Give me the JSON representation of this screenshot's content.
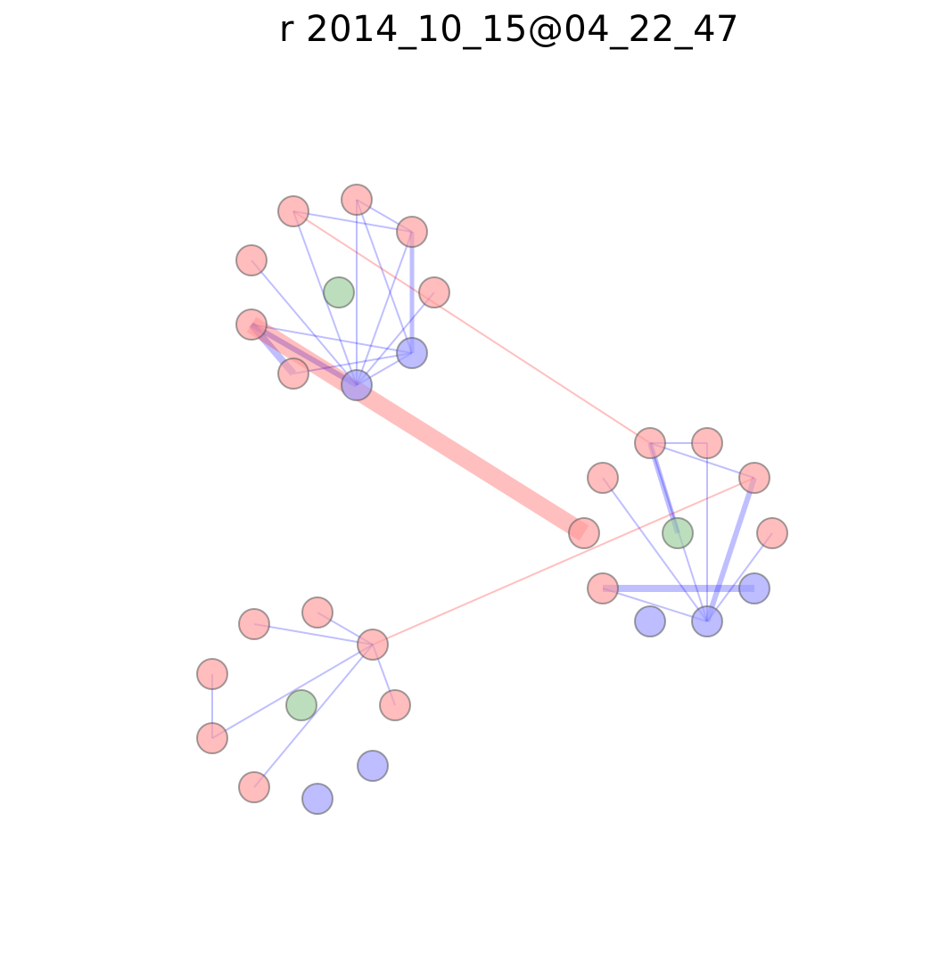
{
  "title": "r 2014_10_15@04_22_47",
  "colors": {
    "red_node": "#ff9999",
    "blue_node": "#9999ff",
    "green_node": "#99cc99",
    "red_edge": "#ff0000",
    "blue_edge": "#0000ff",
    "node_stroke": "#555555"
  },
  "nodes": [
    {
      "id": "a1",
      "color": "red"
    },
    {
      "id": "a2",
      "color": "red"
    },
    {
      "id": "a3",
      "color": "red"
    },
    {
      "id": "a4",
      "color": "red"
    },
    {
      "id": "a5",
      "color": "red"
    },
    {
      "id": "a6",
      "color": "red"
    },
    {
      "id": "a7",
      "color": "red"
    },
    {
      "id": "a8",
      "color": "green"
    },
    {
      "id": "a9",
      "color": "blue"
    },
    {
      "id": "a10",
      "color": "blue"
    },
    {
      "id": "b1",
      "color": "red"
    },
    {
      "id": "b2",
      "color": "red"
    },
    {
      "id": "b3",
      "color": "red"
    },
    {
      "id": "b4",
      "color": "red"
    },
    {
      "id": "b5",
      "color": "red"
    },
    {
      "id": "b6",
      "color": "red"
    },
    {
      "id": "b7",
      "color": "red"
    },
    {
      "id": "b8",
      "color": "green"
    },
    {
      "id": "b9",
      "color": "blue"
    },
    {
      "id": "b10",
      "color": "blue"
    },
    {
      "id": "b11",
      "color": "blue"
    },
    {
      "id": "c1",
      "color": "red"
    },
    {
      "id": "c2",
      "color": "red"
    },
    {
      "id": "c3",
      "color": "red"
    },
    {
      "id": "c4",
      "color": "red"
    },
    {
      "id": "c5",
      "color": "red"
    },
    {
      "id": "c6",
      "color": "red"
    },
    {
      "id": "c7",
      "color": "red"
    },
    {
      "id": "c8",
      "color": "green"
    },
    {
      "id": "c9",
      "color": "blue"
    },
    {
      "id": "c10",
      "color": "blue"
    }
  ],
  "edges": [
    {
      "from": "a1",
      "to": "a3",
      "color": "blue",
      "weight": 1
    },
    {
      "from": "a1",
      "to": "a10",
      "color": "blue",
      "weight": 1
    },
    {
      "from": "a2",
      "to": "a3",
      "color": "blue",
      "weight": 1
    },
    {
      "from": "a2",
      "to": "a10",
      "color": "blue",
      "weight": 1
    },
    {
      "from": "a2",
      "to": "a9",
      "color": "blue",
      "weight": 1
    },
    {
      "from": "a3",
      "to": "a9",
      "color": "blue",
      "weight": 2.5
    },
    {
      "from": "a3",
      "to": "a10",
      "color": "blue",
      "weight": 1
    },
    {
      "from": "a4",
      "to": "a10",
      "color": "blue",
      "weight": 1
    },
    {
      "from": "a5",
      "to": "a10",
      "color": "blue",
      "weight": 1
    },
    {
      "from": "a6",
      "to": "a9",
      "color": "blue",
      "weight": 1
    },
    {
      "from": "a6",
      "to": "a10",
      "color": "blue",
      "weight": 3
    },
    {
      "from": "a6",
      "to": "a7",
      "color": "blue",
      "weight": 4
    },
    {
      "from": "a7",
      "to": "a9",
      "color": "blue",
      "weight": 1
    },
    {
      "from": "a9",
      "to": "a10",
      "color": "blue",
      "weight": 1
    },
    {
      "from": "a6",
      "to": "b7",
      "color": "red",
      "weight": 10
    },
    {
      "from": "a1",
      "to": "b1",
      "color": "red",
      "weight": 1
    },
    {
      "from": "b1",
      "to": "b3",
      "color": "blue",
      "weight": 1
    },
    {
      "from": "b1",
      "to": "b4",
      "color": "blue",
      "weight": 1
    },
    {
      "from": "b1",
      "to": "b8",
      "color": "blue",
      "weight": 3
    },
    {
      "from": "b1",
      "to": "b10",
      "color": "blue",
      "weight": 1
    },
    {
      "from": "b2",
      "to": "b10",
      "color": "blue",
      "weight": 1
    },
    {
      "from": "b3",
      "to": "b10",
      "color": "blue",
      "weight": 3
    },
    {
      "from": "b4",
      "to": "b10",
      "color": "blue",
      "weight": 1
    },
    {
      "from": "b5",
      "to": "b10",
      "color": "blue",
      "weight": 1
    },
    {
      "from": "b6",
      "to": "b9",
      "color": "blue",
      "weight": 4
    },
    {
      "from": "b6",
      "to": "b10",
      "color": "blue",
      "weight": 1
    },
    {
      "from": "b3",
      "to": "c5",
      "color": "red",
      "weight": 1
    },
    {
      "from": "c1",
      "to": "c5",
      "color": "blue",
      "weight": 1
    },
    {
      "from": "c2",
      "to": "c5",
      "color": "blue",
      "weight": 1
    },
    {
      "from": "c5",
      "to": "c6",
      "color": "blue",
      "weight": 1
    },
    {
      "from": "c5",
      "to": "c4",
      "color": "blue",
      "weight": 1
    },
    {
      "from": "c5",
      "to": "c7",
      "color": "blue",
      "weight": 1
    },
    {
      "from": "c3",
      "to": "c4",
      "color": "blue",
      "weight": 1
    }
  ]
}
